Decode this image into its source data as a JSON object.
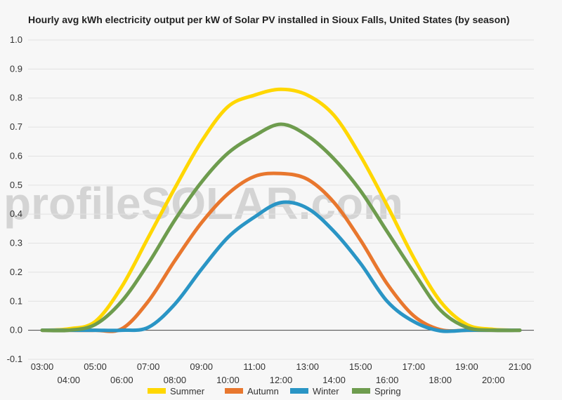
{
  "chart_data": {
    "type": "line",
    "title": "Hourly avg kWh electricity output per kW of Solar PV installed in Sioux Falls, United States (by season)",
    "xlabel": "",
    "ylabel": "",
    "ylim": [
      -0.1,
      1.0
    ],
    "yticks": [
      "-0.1",
      "0.0",
      "0.1",
      "0.2",
      "0.3",
      "0.4",
      "0.5",
      "0.6",
      "0.7",
      "0.8",
      "0.9",
      "1.0"
    ],
    "x_ticks": [
      "03:00",
      "04:00",
      "05:00",
      "06:00",
      "07:00",
      "08:00",
      "09:00",
      "10:00",
      "11:00",
      "12:00",
      "13:00",
      "14:00",
      "15:00",
      "16:00",
      "17:00",
      "18:00",
      "19:00",
      "20:00",
      "21:00"
    ],
    "x": [
      3,
      4,
      5,
      6,
      7,
      8,
      9,
      10,
      11,
      12,
      13,
      14,
      15,
      16,
      17,
      18,
      19,
      20,
      21
    ],
    "grid": true,
    "legend_position": "bottom",
    "series": [
      {
        "name": "Summer",
        "color": "#ffd700",
        "values": [
          0.0,
          0.005,
          0.03,
          0.15,
          0.32,
          0.49,
          0.65,
          0.77,
          0.81,
          0.83,
          0.81,
          0.74,
          0.6,
          0.43,
          0.25,
          0.1,
          0.02,
          0.003,
          0.0
        ]
      },
      {
        "name": "Autumn",
        "color": "#e8772e",
        "values": [
          0.0,
          0.0,
          0.0,
          0.005,
          0.1,
          0.24,
          0.37,
          0.47,
          0.53,
          0.54,
          0.52,
          0.44,
          0.31,
          0.16,
          0.05,
          0.002,
          0.0,
          0.0,
          0.0
        ]
      },
      {
        "name": "Winter",
        "color": "#2a95c5",
        "values": [
          0.0,
          0.0,
          0.0,
          0.0,
          0.01,
          0.09,
          0.21,
          0.32,
          0.39,
          0.44,
          0.42,
          0.34,
          0.23,
          0.1,
          0.03,
          -0.002,
          0.0,
          0.0,
          0.0
        ]
      },
      {
        "name": "Spring",
        "color": "#6e9c4e",
        "values": [
          0.0,
          0.0,
          0.02,
          0.1,
          0.23,
          0.38,
          0.51,
          0.61,
          0.67,
          0.71,
          0.67,
          0.59,
          0.48,
          0.34,
          0.2,
          0.07,
          0.01,
          0.0,
          0.0
        ]
      }
    ]
  },
  "watermark": "profileSOLAR.com"
}
